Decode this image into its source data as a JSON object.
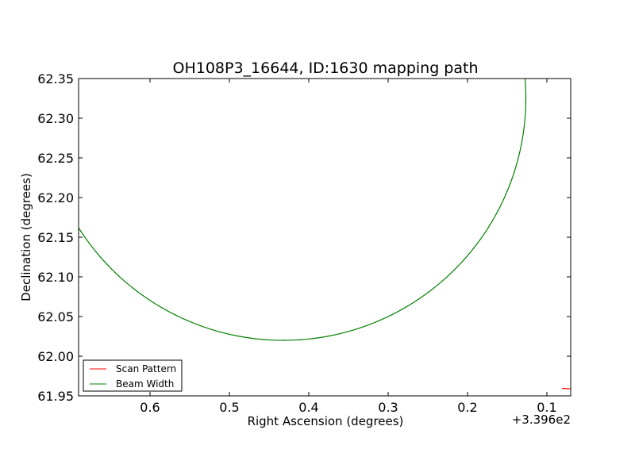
{
  "chart_data": {
    "type": "line",
    "title": "OH108P3_16644, ID:1630 mapping path",
    "xlabel": "Right Ascension (degrees)",
    "ylabel": "Declination (degrees)",
    "x_offset_label": "+3.396e2",
    "x_inverted": true,
    "xlim": [
      0.69,
      0.07
    ],
    "ylim": [
      61.95,
      62.35
    ],
    "xticks": [
      {
        "value": 0.6,
        "label": "0.6"
      },
      {
        "value": 0.5,
        "label": "0.5"
      },
      {
        "value": 0.4,
        "label": "0.4"
      },
      {
        "value": 0.3,
        "label": "0.3"
      },
      {
        "value": 0.2,
        "label": "0.2"
      },
      {
        "value": 0.1,
        "label": "0.1"
      }
    ],
    "yticks": [
      {
        "value": 61.95,
        "label": "61.95"
      },
      {
        "value": 62.0,
        "label": "62.00"
      },
      {
        "value": 62.05,
        "label": "62.05"
      },
      {
        "value": 62.1,
        "label": "62.10"
      },
      {
        "value": 62.15,
        "label": "62.15"
      },
      {
        "value": 62.2,
        "label": "62.20"
      },
      {
        "value": 62.25,
        "label": "62.25"
      },
      {
        "value": 62.3,
        "label": "62.30"
      },
      {
        "value": 62.35,
        "label": "62.35"
      }
    ],
    "grid": false,
    "legend_position": "lower-left",
    "series": [
      {
        "name": "Scan Pattern",
        "color": "#ff0000",
        "x": [
          0.081,
          0.074,
          0.07
        ],
        "y": [
          61.9595,
          61.959,
          61.9588
        ]
      },
      {
        "name": "Beam Width",
        "color": "#008000",
        "circle": {
          "center_x": 0.432,
          "center_y": 62.3255,
          "radius": 0.3055
        }
      }
    ]
  }
}
